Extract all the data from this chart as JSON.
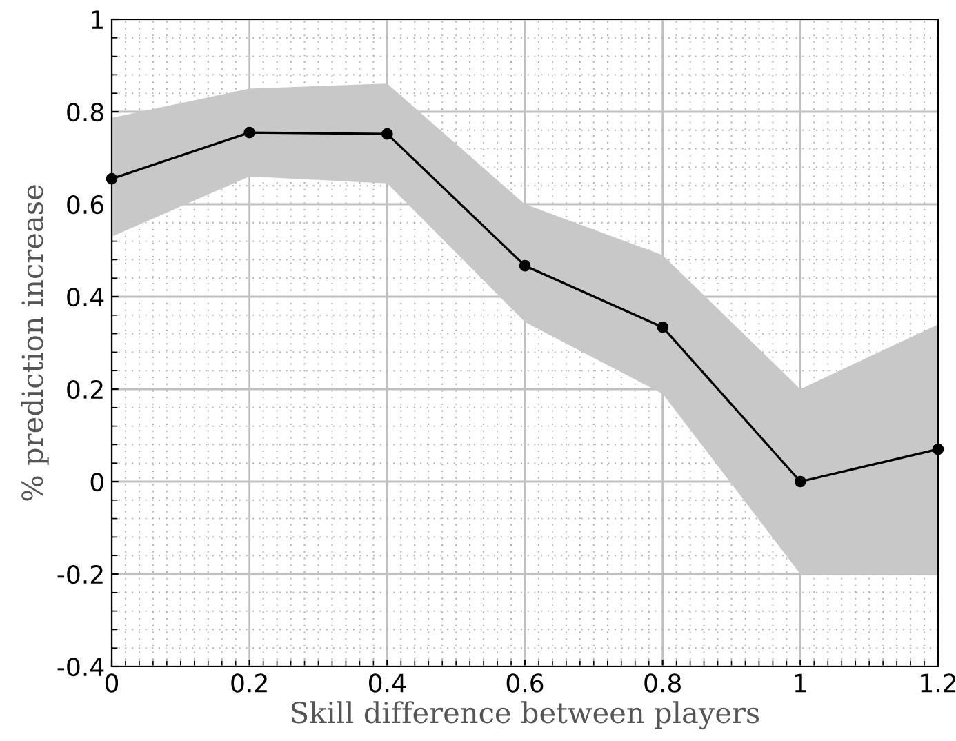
{
  "chart_data": {
    "type": "line",
    "xlabel": "Skill difference between players",
    "ylabel": "% prediction increase",
    "x": [
      0,
      0.2,
      0.4,
      0.6,
      0.8,
      1.0,
      1.2
    ],
    "series": [
      {
        "color": "#000000",
        "values": [
          0.655,
          0.755,
          0.752,
          0.467,
          0.334,
          0.0,
          0.07
        ],
        "lower": [
          0.53,
          0.66,
          0.645,
          0.345,
          0.19,
          -0.2,
          -0.2
        ],
        "upper": [
          0.787,
          0.85,
          0.861,
          0.6,
          0.49,
          0.2,
          0.34
        ]
      }
    ],
    "xlim": [
      0,
      1.2
    ],
    "xticks": [
      0,
      0.2,
      0.4,
      0.6,
      0.8,
      1,
      1.2
    ],
    "ylim": [
      -0.4,
      1
    ],
    "yticks": [
      -0.4,
      -0.2,
      0,
      0.2,
      0.4,
      0.6,
      0.8,
      1
    ],
    "grid": true,
    "marker": "circle",
    "line_style": "solid"
  }
}
